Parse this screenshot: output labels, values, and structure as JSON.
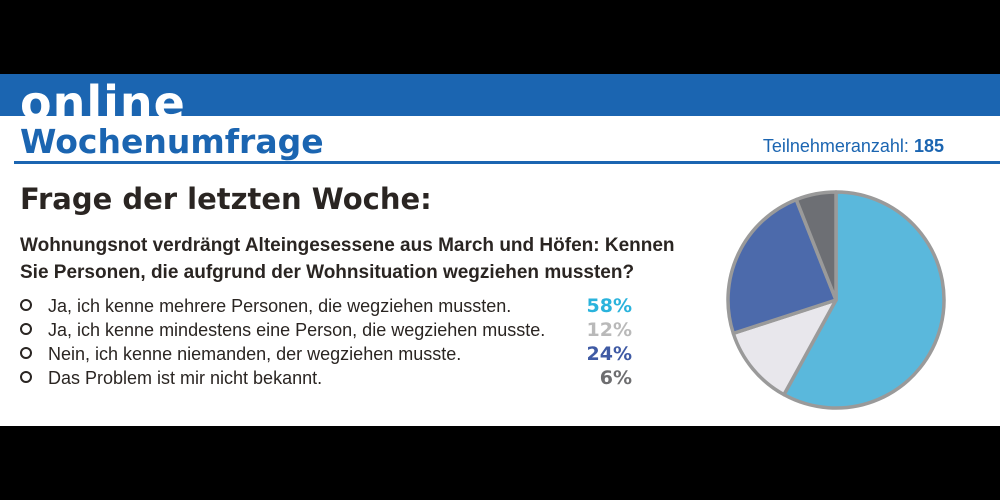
{
  "header": {
    "online": "online",
    "title": "Wochenumfrage",
    "participants_label": "Teilnehmeranzahl:",
    "participants_count": "185"
  },
  "poll": {
    "heading": "Frage der letzten Woche:",
    "question_line1": "Wohnungsnot verdrängt Alteingesessene aus March und Höfen: Kennen",
    "question_line2": "Sie Personen, die aufgrund der Wohnsituation wegziehen mussten?",
    "answers": [
      {
        "label": "Ja, ich kenne mehrere Personen, die wegziehen mussten.",
        "pct": "58%",
        "color": "#2ab3dc"
      },
      {
        "label": "Ja, ich kenne mindestens eine Person, die wegziehen musste.",
        "pct": "12%",
        "color": "#b9b9b9"
      },
      {
        "label": "Nein, ich kenne niemanden, der wegziehen musste.",
        "pct": "24%",
        "color": "#3f5aa4"
      },
      {
        "label": "Das Problem ist mir nicht bekannt.",
        "pct": "6%",
        "color": "#6e6e70"
      }
    ]
  },
  "colors": {
    "brand_blue": "#1b65b1",
    "pie_outline": "#9a9a9a"
  },
  "chart_data": {
    "type": "pie",
    "title": "",
    "start_angle_deg": 0,
    "direction": "clockwise",
    "slices": [
      {
        "label": "Ja, ich kenne mehrere Personen, die wegziehen mussten.",
        "value": 58,
        "color": "#5ab8dc"
      },
      {
        "label": "Ja, ich kenne mindestens eine Person, die wegziehen musste.",
        "value": 12,
        "color": "#e8e7ec"
      },
      {
        "label": "Nein, ich kenne niemanden, der wegziehen musste.",
        "value": 24,
        "color": "#4c6aab"
      },
      {
        "label": "Das Problem ist mir nicht bekannt.",
        "value": 6,
        "color": "#6d6f74"
      }
    ]
  }
}
